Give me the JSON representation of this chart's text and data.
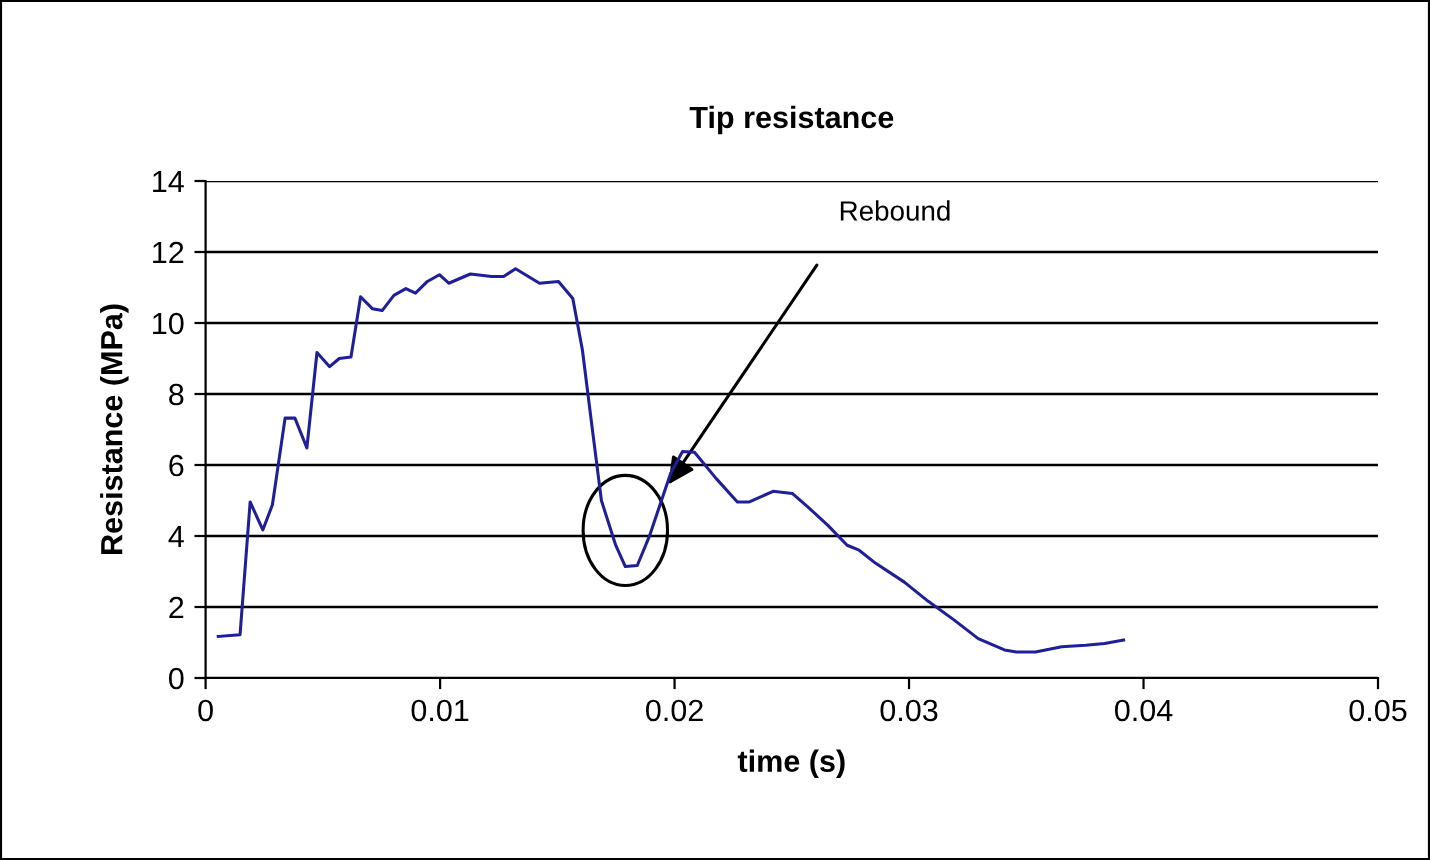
{
  "chart_data": {
    "type": "line",
    "title": "Tip resistance",
    "xlabel": "time (s)",
    "ylabel": "Resistance (MPa)",
    "x": [
      0.00054,
      0.00147,
      0.0019,
      0.00244,
      0.00285,
      0.00339,
      0.00381,
      0.00432,
      0.00475,
      0.00529,
      0.0057,
      0.0062,
      0.00661,
      0.00712,
      0.00753,
      0.00803,
      0.00854,
      0.00895,
      0.00946,
      0.00997,
      0.01037,
      0.01129,
      0.0122,
      0.01271,
      0.01322,
      0.01424,
      0.01505,
      0.01566,
      0.01607,
      0.01648,
      0.01688,
      0.01749,
      0.0179,
      0.01841,
      0.01892,
      0.01983,
      0.02034,
      0.02085,
      0.02176,
      0.02268,
      0.02319,
      0.0242,
      0.02502,
      0.02573,
      0.02654,
      0.02736,
      0.02787,
      0.02858,
      0.0298,
      0.03082,
      0.03193,
      0.03295,
      0.03407,
      0.03458,
      0.03539,
      0.03651,
      0.03753,
      0.03834,
      0.03915
    ],
    "series": [
      {
        "color": "#1f1f9a",
        "values": [
          1.17,
          1.22,
          4.96,
          4.17,
          4.88,
          7.32,
          7.32,
          6.48,
          9.17,
          8.77,
          9.0,
          9.04,
          10.74,
          10.4,
          10.35,
          10.78,
          10.97,
          10.84,
          11.17,
          11.36,
          11.12,
          11.38,
          11.31,
          11.31,
          11.53,
          11.12,
          11.17,
          10.69,
          9.24,
          7.08,
          5.0,
          3.74,
          3.14,
          3.17,
          3.98,
          5.76,
          6.38,
          6.36,
          5.63,
          4.96,
          4.96,
          5.26,
          5.2,
          4.79,
          4.3,
          3.74,
          3.6,
          3.23,
          2.7,
          2.16,
          1.63,
          1.11,
          0.79,
          0.73,
          0.73,
          0.88,
          0.92,
          0.97,
          1.07
        ]
      }
    ],
    "xlim": [
      0,
      0.05
    ],
    "xticks": [
      0,
      0.01,
      0.02,
      0.03,
      0.04,
      0.05
    ],
    "ylim": [
      0,
      14
    ],
    "yticks": [
      0,
      2,
      4,
      6,
      8,
      10,
      12,
      14
    ],
    "grid": "y",
    "legend": false,
    "annotations": [
      "Rebound"
    ]
  }
}
